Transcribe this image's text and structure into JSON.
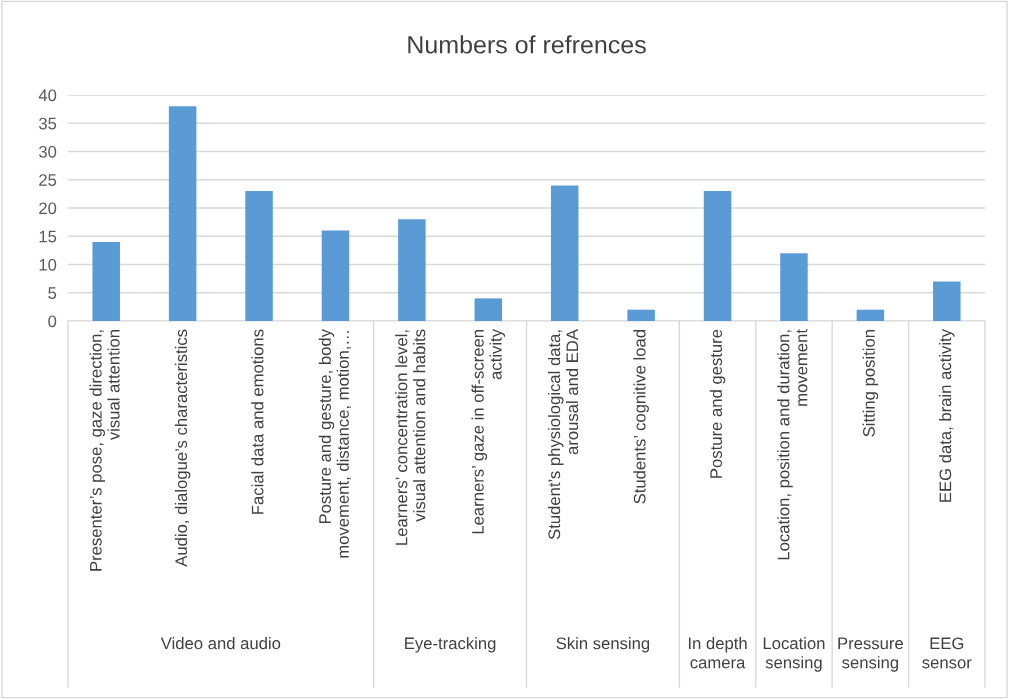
{
  "chart_data": {
    "type": "bar",
    "title": "Numbers of refrences",
    "categories": [
      "Presenter’s pose, gaze direction,\nvisual attention",
      "Audio, dialogue’s characteristics",
      "Facial data and emotions",
      "Posture and gesture, body\nmovement, distance, motion,…",
      "Learners’ concentration level,\nvisual attention and habits",
      "Learners’ gaze in off-screen\nactivity",
      "Student’s physiological data,\narousal and EDA",
      "Students’ cognitive load",
      "Posture and gesture",
      "Location, position and duration,\nmovement",
      "Sitting position",
      "EEG data, brain activity"
    ],
    "values": [
      14,
      38,
      23,
      16,
      18,
      4,
      24,
      2,
      23,
      12,
      2,
      7
    ],
    "color": "#5b9bd5",
    "ylim": [
      0,
      40
    ],
    "yticks": [
      0,
      5,
      10,
      15,
      20,
      25,
      30,
      35,
      40
    ],
    "grid": "y",
    "annotations": [
      "Video and audio",
      "Eye-tracking",
      "Skin sensing",
      "In depth\ncamera",
      "Location\nsensing",
      "Pressure\nsensing",
      "EEG\nsensor"
    ]
  }
}
